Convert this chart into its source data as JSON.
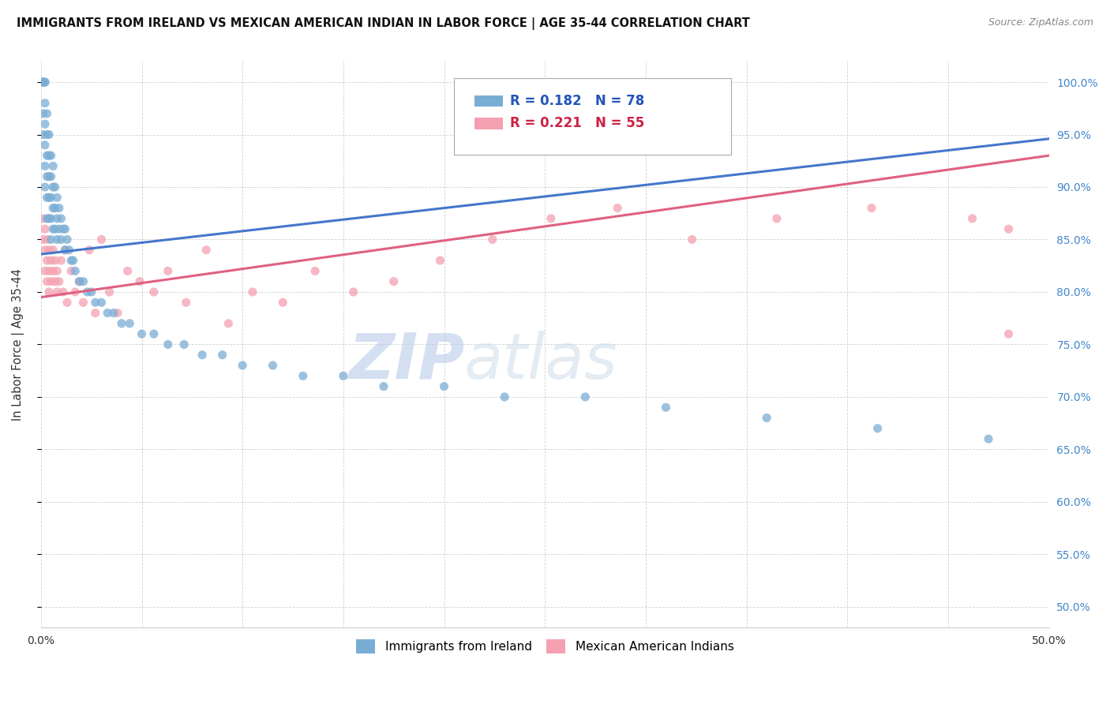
{
  "title": "IMMIGRANTS FROM IRELAND VS MEXICAN AMERICAN INDIAN IN LABOR FORCE | AGE 35-44 CORRELATION CHART",
  "source": "Source: ZipAtlas.com",
  "ylabel": "In Labor Force | Age 35-44",
  "xmin": 0.0,
  "xmax": 0.5,
  "ymin": 0.48,
  "ymax": 1.02,
  "yticks": [
    0.5,
    0.55,
    0.6,
    0.65,
    0.7,
    0.75,
    0.8,
    0.85,
    0.9,
    0.95,
    1.0
  ],
  "ytick_labels": [
    "50.0%",
    "55.0%",
    "60.0%",
    "65.0%",
    "70.0%",
    "75.0%",
    "80.0%",
    "85.0%",
    "90.0%",
    "95.0%",
    "100.0%"
  ],
  "xticks": [
    0.0,
    0.05,
    0.1,
    0.15,
    0.2,
    0.25,
    0.3,
    0.35,
    0.4,
    0.45,
    0.5
  ],
  "xtick_labels": [
    "0.0%",
    "",
    "",
    "",
    "",
    "",
    "",
    "",
    "",
    "",
    "50.0%"
  ],
  "legend_ireland_label": "Immigrants from Ireland",
  "legend_mexican_label": "Mexican American Indians",
  "ireland_R": "R = 0.182",
  "ireland_N": "N = 78",
  "mexican_R": "R = 0.221",
  "mexican_N": "N = 55",
  "ireland_color": "#7aadd4",
  "mexican_color": "#f4a0b0",
  "ireland_line_color": "#4477cc",
  "mexican_line_color": "#e06080",
  "watermark_zip": "ZIP",
  "watermark_atlas": "atlas",
  "background_color": "#ffffff",
  "grid_color": "#cccccc",
  "ireland_x": [
    0.001,
    0.001,
    0.001,
    0.001,
    0.001,
    0.002,
    0.002,
    0.002,
    0.002,
    0.002,
    0.002,
    0.002,
    0.003,
    0.003,
    0.003,
    0.003,
    0.003,
    0.003,
    0.004,
    0.004,
    0.004,
    0.004,
    0.004,
    0.005,
    0.005,
    0.005,
    0.005,
    0.005,
    0.006,
    0.006,
    0.006,
    0.006,
    0.007,
    0.007,
    0.007,
    0.008,
    0.008,
    0.008,
    0.009,
    0.009,
    0.01,
    0.01,
    0.011,
    0.012,
    0.012,
    0.013,
    0.014,
    0.015,
    0.016,
    0.017,
    0.019,
    0.021,
    0.023,
    0.025,
    0.027,
    0.03,
    0.033,
    0.036,
    0.04,
    0.044,
    0.05,
    0.056,
    0.063,
    0.071,
    0.08,
    0.09,
    0.1,
    0.115,
    0.13,
    0.15,
    0.17,
    0.2,
    0.23,
    0.27,
    0.31,
    0.36,
    0.415,
    0.47
  ],
  "ireland_y": [
    1.0,
    1.0,
    1.0,
    0.97,
    0.95,
    1.0,
    1.0,
    0.98,
    0.96,
    0.94,
    0.92,
    0.9,
    0.97,
    0.95,
    0.93,
    0.91,
    0.89,
    0.87,
    0.95,
    0.93,
    0.91,
    0.89,
    0.87,
    0.93,
    0.91,
    0.89,
    0.87,
    0.85,
    0.92,
    0.9,
    0.88,
    0.86,
    0.9,
    0.88,
    0.86,
    0.89,
    0.87,
    0.85,
    0.88,
    0.86,
    0.87,
    0.85,
    0.86,
    0.86,
    0.84,
    0.85,
    0.84,
    0.83,
    0.83,
    0.82,
    0.81,
    0.81,
    0.8,
    0.8,
    0.79,
    0.79,
    0.78,
    0.78,
    0.77,
    0.77,
    0.76,
    0.76,
    0.75,
    0.75,
    0.74,
    0.74,
    0.73,
    0.73,
    0.72,
    0.72,
    0.71,
    0.71,
    0.7,
    0.7,
    0.69,
    0.68,
    0.67,
    0.66
  ],
  "ireland_trendline_x": [
    0.0,
    0.5
  ],
  "ireland_trendline_y": [
    0.836,
    0.946
  ],
  "mexican_x": [
    0.001,
    0.001,
    0.002,
    0.002,
    0.002,
    0.003,
    0.003,
    0.003,
    0.004,
    0.004,
    0.004,
    0.005,
    0.005,
    0.006,
    0.006,
    0.007,
    0.007,
    0.008,
    0.008,
    0.009,
    0.01,
    0.011,
    0.012,
    0.013,
    0.015,
    0.017,
    0.019,
    0.021,
    0.024,
    0.027,
    0.03,
    0.034,
    0.038,
    0.043,
    0.049,
    0.056,
    0.063,
    0.072,
    0.082,
    0.093,
    0.105,
    0.12,
    0.136,
    0.155,
    0.175,
    0.198,
    0.224,
    0.253,
    0.286,
    0.323,
    0.365,
    0.412,
    0.462,
    0.48,
    0.48
  ],
  "mexican_y": [
    0.87,
    0.85,
    0.86,
    0.84,
    0.82,
    0.85,
    0.83,
    0.81,
    0.84,
    0.82,
    0.8,
    0.83,
    0.81,
    0.84,
    0.82,
    0.83,
    0.81,
    0.82,
    0.8,
    0.81,
    0.83,
    0.8,
    0.84,
    0.79,
    0.82,
    0.8,
    0.81,
    0.79,
    0.84,
    0.78,
    0.85,
    0.8,
    0.78,
    0.82,
    0.81,
    0.8,
    0.82,
    0.79,
    0.84,
    0.77,
    0.8,
    0.79,
    0.82,
    0.8,
    0.81,
    0.83,
    0.85,
    0.87,
    0.88,
    0.85,
    0.87,
    0.88,
    0.87,
    0.86,
    0.76
  ],
  "mexican_trendline_x": [
    0.0,
    0.5
  ],
  "mexican_trendline_y": [
    0.795,
    0.93
  ]
}
